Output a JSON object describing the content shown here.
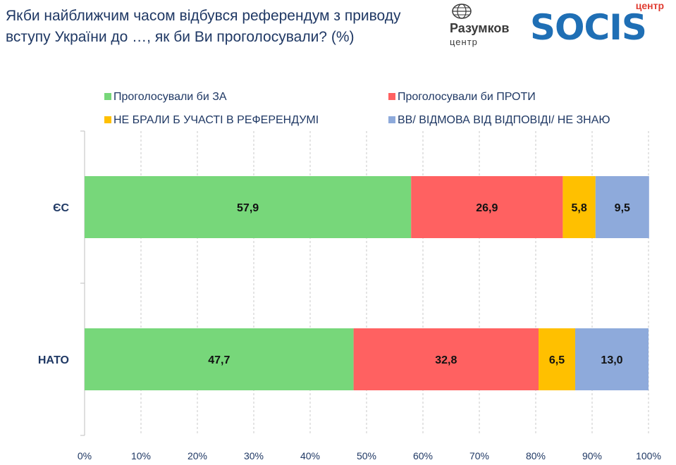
{
  "title": "Якби найближчим часом відбувся референдум з приводу вступу України до …, як би Ви проголосували? (%)",
  "logos": {
    "razumkov_name": "Разумков",
    "razumkov_sub": "центр",
    "socis_top": "центр",
    "socis_word": "SOCIS"
  },
  "chart_data": {
    "type": "bar",
    "orientation": "horizontal",
    "stacked": true,
    "categories": [
      "ЄС",
      "НАТО"
    ],
    "series": [
      {
        "name": "Проголосували би ЗА",
        "color": "#77d77a",
        "values": [
          57.9,
          47.7
        ]
      },
      {
        "name": "Проголосували би ПРОТИ",
        "color": "#ff6161",
        "values": [
          26.9,
          32.8
        ]
      },
      {
        "name": "НЕ БРАЛИ Б УЧАСТІ В РЕФЕРЕНДУМІ",
        "color": "#ffc000",
        "values": [
          5.8,
          6.5
        ]
      },
      {
        "name": "ВВ/ ВІДМОВА ВІД ВІДПОВІДІ/ НЕ ЗНАЮ",
        "color": "#8eaadb",
        "values": [
          9.5,
          13.0
        ]
      }
    ],
    "value_labels": [
      [
        "57,9",
        "47,7"
      ],
      [
        "26,9",
        "32,8"
      ],
      [
        "5,8",
        "6,5"
      ],
      [
        "9,5",
        "13,0"
      ]
    ],
    "x_ticks": [
      "0%",
      "10%",
      "20%",
      "30%",
      "40%",
      "50%",
      "60%",
      "70%",
      "80%",
      "90%",
      "100%"
    ],
    "xlim": [
      0,
      100
    ],
    "grid": true,
    "legend_position": "top"
  }
}
